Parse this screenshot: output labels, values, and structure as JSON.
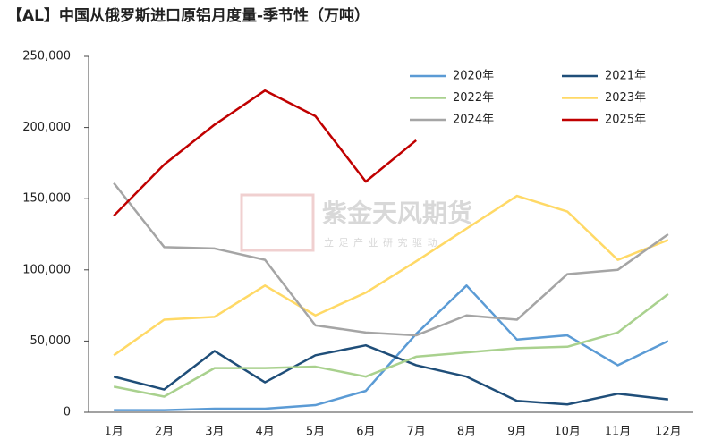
{
  "chart_data": {
    "type": "line",
    "title": "【AL】中国从俄罗斯进口原铝月度量-季节性（万吨）",
    "watermark": "紫金天风期货",
    "watermark_subtitle": "立 足 产 业 研 究 驱 动",
    "categories": [
      "1月",
      "2月",
      "3月",
      "4月",
      "5月",
      "6月",
      "7月",
      "8月",
      "9月",
      "10月",
      "11月",
      "12月"
    ],
    "ylim": [
      0,
      250000
    ],
    "yticks": [
      {
        "value": 0,
        "label": "0"
      },
      {
        "value": 50000,
        "label": "50,000"
      },
      {
        "value": 100000,
        "label": "100,000"
      },
      {
        "value": 150000,
        "label": "150,000"
      },
      {
        "value": 200000,
        "label": "200,000"
      },
      {
        "value": 250000,
        "label": "250,000"
      }
    ],
    "grid": false,
    "series": [
      {
        "name": "2020年",
        "color": "#5b9bd5",
        "values": [
          1500,
          1500,
          2500,
          2500,
          5000,
          15000,
          55000,
          89000,
          51000,
          54000,
          33000,
          50000
        ]
      },
      {
        "name": "2021年",
        "color": "#1f4e79",
        "values": [
          25000,
          16000,
          43000,
          21000,
          40000,
          47000,
          33000,
          25000,
          8000,
          5500,
          13000,
          9000
        ]
      },
      {
        "name": "2022年",
        "color": "#a9d18e",
        "values": [
          18000,
          11000,
          31000,
          31000,
          32000,
          25000,
          39000,
          42000,
          45000,
          46000,
          56000,
          83000
        ]
      },
      {
        "name": "2023年",
        "color": "#ffd966",
        "values": [
          40000,
          65000,
          67000,
          89000,
          68000,
          84000,
          106000,
          129000,
          152000,
          141000,
          107000,
          121000
        ]
      },
      {
        "name": "2024年",
        "color": "#a5a5a5",
        "values": [
          161000,
          116000,
          115000,
          107000,
          61000,
          56000,
          54000,
          68000,
          65000,
          97000,
          100000,
          125000
        ]
      },
      {
        "name": "2025年",
        "color": "#c00000",
        "values": [
          138000,
          174000,
          202000,
          226000,
          208000,
          162000,
          191000,
          null,
          null,
          null,
          null,
          null
        ]
      }
    ]
  }
}
